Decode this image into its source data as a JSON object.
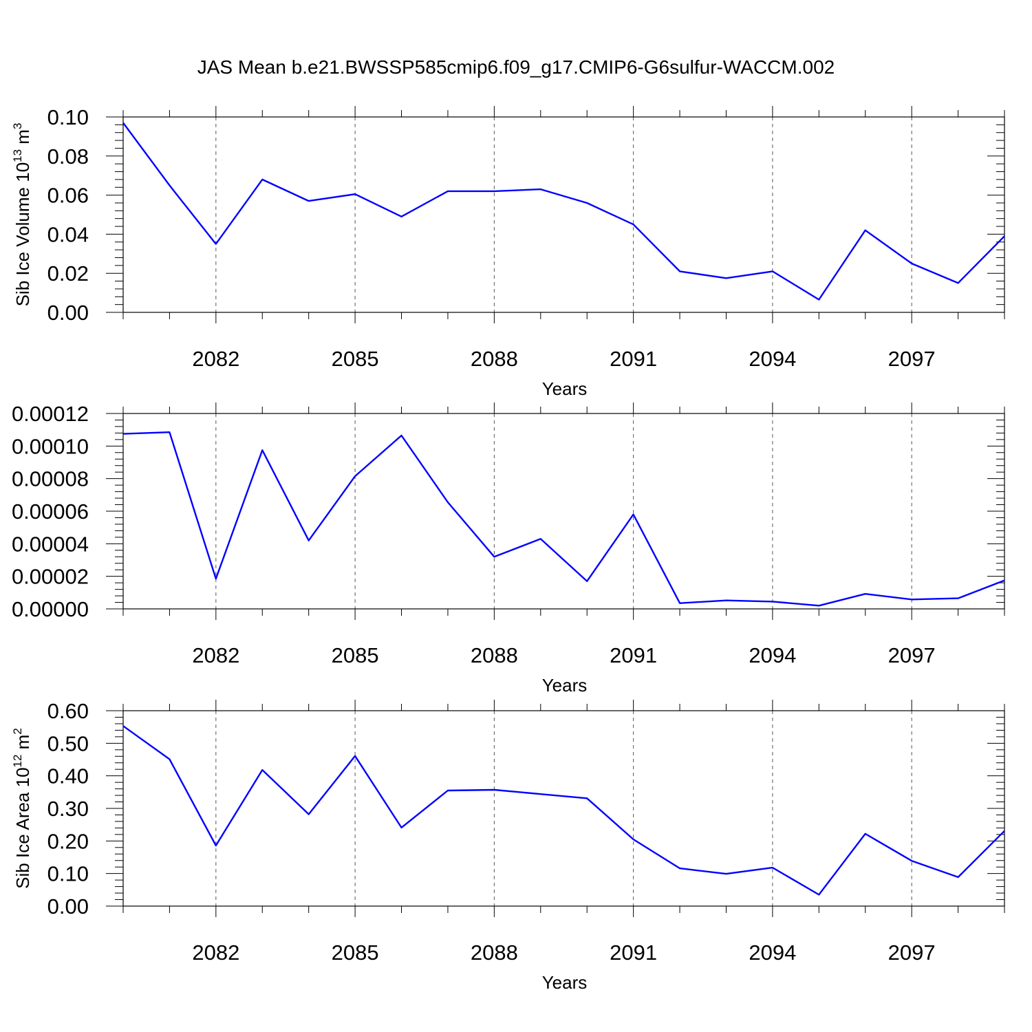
{
  "title": "JAS Mean b.e21.BWSSP585cmip6.f09_g17.CMIP6-G6sulfur-WACCM.002",
  "colors": {
    "series": "#0000ff",
    "axis": "#000000",
    "grid": "#555555"
  },
  "chart_data": [
    {
      "type": "line",
      "x": [
        2080,
        2081,
        2082,
        2083,
        2084,
        2085,
        2086,
        2087,
        2088,
        2089,
        2090,
        2091,
        2092,
        2093,
        2094,
        2095,
        2096,
        2097,
        2098,
        2099
      ],
      "values": [
        0.097,
        0.065,
        0.035,
        0.068,
        0.057,
        0.0605,
        0.049,
        0.062,
        0.062,
        0.063,
        0.056,
        0.045,
        0.021,
        0.0175,
        0.021,
        0.0065,
        0.042,
        0.025,
        0.015,
        0.039
      ],
      "xlim": [
        2080,
        2099
      ],
      "ylim": [
        0,
        0.1
      ],
      "xticks": [
        "2082",
        "2085",
        "2088",
        "2091",
        "2094",
        "2097"
      ],
      "yticks": [
        "0.00",
        "0.02",
        "0.04",
        "0.06",
        "0.08",
        "0.10"
      ],
      "xlabel": "Years",
      "ylabel": {
        "text": "Sib Ice Volume 10",
        "exp": "13",
        "unit": "m",
        "unit_exp": "3"
      }
    },
    {
      "type": "line",
      "x": [
        2080,
        2081,
        2082,
        2083,
        2084,
        2085,
        2086,
        2087,
        2088,
        2089,
        2090,
        2091,
        2092,
        2093,
        2094,
        2095,
        2096,
        2097,
        2098,
        2099
      ],
      "values": [
        0.0001075,
        0.0001085,
        1.85e-05,
        9.75e-05,
        4.2e-05,
        8.15e-05,
        0.0001065,
        6.55e-05,
        3.2e-05,
        4.3e-05,
        1.7e-05,
        5.8e-05,
        3.5e-06,
        5.2e-06,
        4.5e-06,
        2e-06,
        9.2e-06,
        5.8e-06,
        6.5e-06,
        1.75e-05
      ],
      "xlim": [
        2080,
        2099
      ],
      "ylim": [
        0,
        0.00012
      ],
      "xticks": [
        "2082",
        "2085",
        "2088",
        "2091",
        "2094",
        "2097"
      ],
      "yticks": [
        "0.00000",
        "0.00002",
        "0.00004",
        "0.00006",
        "0.00008",
        "0.00010",
        "0.00012"
      ],
      "xlabel": "Years",
      "ylabel": null
    },
    {
      "type": "line",
      "x": [
        2080,
        2081,
        2082,
        2083,
        2084,
        2085,
        2086,
        2087,
        2088,
        2089,
        2090,
        2091,
        2092,
        2093,
        2094,
        2095,
        2096,
        2097,
        2098,
        2099
      ],
      "values": [
        0.553,
        0.451,
        0.186,
        0.418,
        0.282,
        0.461,
        0.241,
        0.355,
        0.357,
        0.344,
        0.331,
        0.205,
        0.116,
        0.099,
        0.118,
        0.035,
        0.222,
        0.139,
        0.089,
        0.231
      ],
      "xlim": [
        2080,
        2099
      ],
      "ylim": [
        0,
        0.6
      ],
      "xticks": [
        "2082",
        "2085",
        "2088",
        "2091",
        "2094",
        "2097"
      ],
      "yticks": [
        "0.00",
        "0.10",
        "0.20",
        "0.30",
        "0.40",
        "0.50",
        "0.60"
      ],
      "xlabel": "Years",
      "ylabel": {
        "text": "Sib Ice Area 10",
        "exp": "12",
        "unit": "m",
        "unit_exp": "2"
      }
    }
  ]
}
